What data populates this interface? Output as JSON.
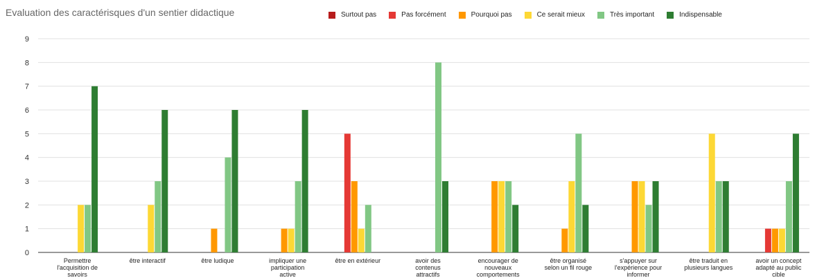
{
  "chart_data": {
    "type": "bar",
    "title": "Evaluation des caractérisques d'un sentier didactique",
    "xlabel": "",
    "ylabel": "",
    "ylim": [
      0,
      9
    ],
    "yticks": [
      0,
      1,
      2,
      3,
      4,
      5,
      6,
      7,
      8,
      9
    ],
    "grid": true,
    "legend_position": "top",
    "categories": [
      "Permettre l'acquisition de savoirs",
      "être interactif",
      "être ludique",
      "impliquer une participation active",
      "être en extérieur",
      "avoir des contenus attractifs",
      "encourager de nouveaux comportements",
      "être organisé selon un fil rouge",
      "s'appuyer sur l'expérience pour informer",
      "être traduit en plusieurs langues",
      "avoir un concept adapté au public cible"
    ],
    "category_lines": [
      [
        "Permettre",
        "l'acquisition de",
        "savoirs"
      ],
      [
        "être interactif"
      ],
      [
        "être ludique"
      ],
      [
        "impliquer une",
        "participation",
        "active"
      ],
      [
        "être en extérieur"
      ],
      [
        "avoir des",
        "contenus",
        "attractifs"
      ],
      [
        "encourager de",
        "nouveaux",
        "comportements"
      ],
      [
        "être organisé",
        "selon un fil rouge"
      ],
      [
        "s'appuyer sur",
        "l'expérience pour",
        "informer"
      ],
      [
        "être traduit en",
        "plusieurs langues"
      ],
      [
        "avoir un concept",
        "adapté au public",
        "cible"
      ]
    ],
    "series": [
      {
        "name": "Surtout pas",
        "color": "#b71c1c",
        "values": [
          0,
          0,
          0,
          0,
          0,
          0,
          0,
          0,
          0,
          0,
          0
        ]
      },
      {
        "name": "Pas forcément",
        "color": "#e53935",
        "values": [
          0,
          0,
          0,
          0,
          5,
          0,
          0,
          0,
          0,
          0,
          1
        ]
      },
      {
        "name": "Pourquoi pas",
        "color": "#ff9800",
        "values": [
          0,
          0,
          1,
          1,
          3,
          0,
          3,
          1,
          3,
          0,
          1
        ]
      },
      {
        "name": "Ce serait mieux",
        "color": "#fdd835",
        "values": [
          2,
          2,
          0,
          1,
          1,
          0,
          3,
          3,
          3,
          5,
          1
        ]
      },
      {
        "name": "Très important",
        "color": "#81c784",
        "values": [
          2,
          3,
          4,
          3,
          2,
          8,
          3,
          5,
          2,
          3,
          3
        ]
      },
      {
        "name": "Indispensable",
        "color": "#2e7d32",
        "values": [
          7,
          6,
          6,
          6,
          0,
          3,
          2,
          2,
          3,
          3,
          5
        ]
      }
    ]
  }
}
